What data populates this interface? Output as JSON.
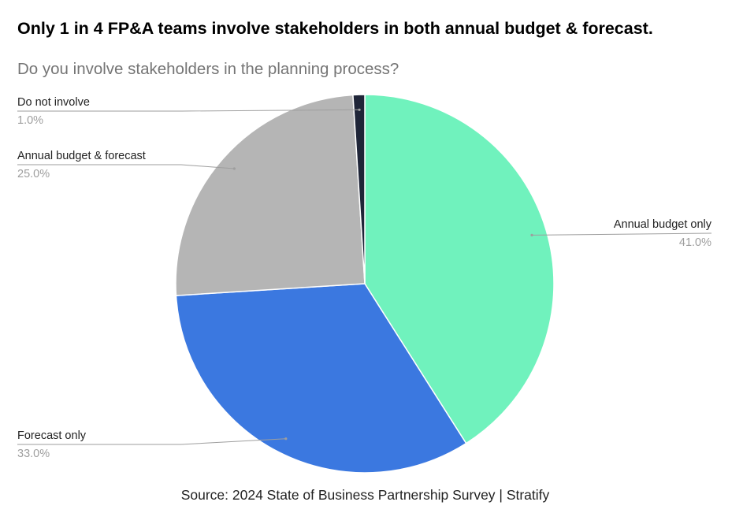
{
  "headline": "Only 1 in 4 FP&A teams involve stakeholders in both annual budget & forecast.",
  "source": "Source: 2024 State of Business Partnership Survey | Stratify",
  "chart_data": {
    "type": "pie",
    "title": "Do you involve stakeholders in the planning process?",
    "slices": [
      {
        "label": "Annual budget only",
        "value": 41.0,
        "display": "41.0%",
        "color": "#70f2bd"
      },
      {
        "label": "Forecast only",
        "value": 33.0,
        "display": "33.0%",
        "color": "#3b78e0"
      },
      {
        "label": "Annual budget & forecast",
        "value": 25.0,
        "display": "25.0%",
        "color": "#b5b5b5"
      },
      {
        "label": "Do not involve",
        "value": 1.0,
        "display": "1.0%",
        "color": "#1f2538"
      }
    ]
  }
}
